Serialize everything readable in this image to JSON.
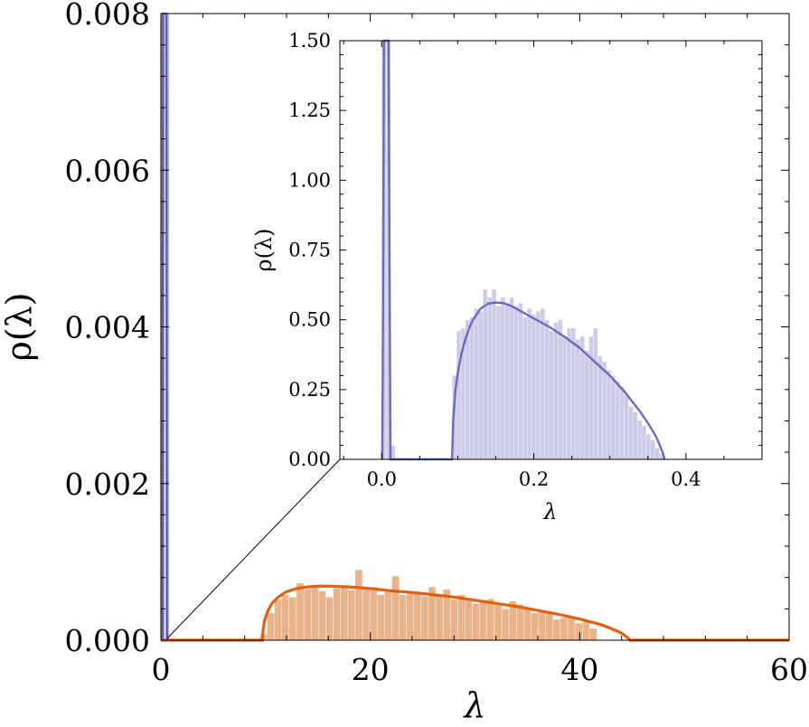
{
  "chart_data": [
    {
      "type": "bar",
      "role": "main",
      "xlabel": "λ",
      "ylabel": "ρ(λ)",
      "xlim": [
        0,
        60
      ],
      "ylim": [
        0,
        0.008
      ],
      "x_ticks": [
        "0",
        "20",
        "40",
        "60"
      ],
      "y_ticks": [
        "0.000",
        "0.002",
        "0.004",
        "0.006",
        "0.008"
      ],
      "grid": false,
      "series": [
        {
          "type": "bar",
          "color": "#e9b38a",
          "bin_width": 0.7,
          "bins": [
            [
              9.8,
              8e-05
            ],
            [
              10.5,
              0.00035
            ],
            [
              11.2,
              0.00052
            ],
            [
              11.9,
              0.00058
            ],
            [
              12.6,
              0.00055
            ],
            [
              13.3,
              0.00073
            ],
            [
              14.0,
              0.00065
            ],
            [
              14.7,
              0.00069
            ],
            [
              15.4,
              0.00063
            ],
            [
              16.1,
              0.00055
            ],
            [
              16.8,
              0.00066
            ],
            [
              17.5,
              0.0007
            ],
            [
              18.2,
              0.00064
            ],
            [
              18.9,
              0.0009
            ],
            [
              19.6,
              0.00065
            ],
            [
              20.3,
              0.00068
            ],
            [
              21.0,
              0.00058
            ],
            [
              21.7,
              0.00062
            ],
            [
              22.4,
              0.00082
            ],
            [
              23.1,
              0.00058
            ],
            [
              23.8,
              0.0006
            ],
            [
              24.5,
              0.00062
            ],
            [
              25.2,
              0.00056
            ],
            [
              25.9,
              0.00068
            ],
            [
              26.6,
              0.00056
            ],
            [
              27.3,
              0.00065
            ],
            [
              28.0,
              0.00052
            ],
            [
              28.7,
              0.00058
            ],
            [
              29.4,
              0.00053
            ],
            [
              30.1,
              0.00047
            ],
            [
              30.8,
              0.0005
            ],
            [
              31.5,
              0.00053
            ],
            [
              32.2,
              0.00045
            ],
            [
              32.9,
              0.0004
            ],
            [
              33.6,
              0.0005
            ],
            [
              34.3,
              0.00046
            ],
            [
              35.0,
              0.0004
            ],
            [
              35.7,
              0.00035
            ],
            [
              36.4,
              0.00036
            ],
            [
              37.1,
              0.00036
            ],
            [
              37.8,
              0.00027
            ],
            [
              38.5,
              0.00029
            ],
            [
              39.2,
              0.0003
            ],
            [
              39.9,
              0.00022
            ],
            [
              40.6,
              0.00024
            ],
            [
              41.3,
              0.00015
            ]
          ]
        },
        {
          "type": "bar",
          "color": "#8f8fd0",
          "bin_width": 0.35,
          "bins": [
            [
              0.2,
              0.008
            ],
            [
              0.6,
              0.008
            ]
          ]
        },
        {
          "type": "line",
          "color": "#e06010",
          "points": [
            [
              0,
              0
            ],
            [
              9.7,
              0
            ],
            [
              9.75,
              0.00012
            ],
            [
              9.9,
              0.00025
            ],
            [
              10.2,
              0.00037
            ],
            [
              10.6,
              0.00047
            ],
            [
              11.2,
              0.00055
            ],
            [
              12,
              0.00062
            ],
            [
              13,
              0.00066
            ],
            [
              14,
              0.00068
            ],
            [
              15,
              0.00069
            ],
            [
              16,
              0.00069
            ],
            [
              18,
              0.00068
            ],
            [
              20,
              0.00066
            ],
            [
              22,
              0.00063
            ],
            [
              24,
              0.00061
            ],
            [
              26,
              0.00058
            ],
            [
              28,
              0.00055
            ],
            [
              30,
              0.00051
            ],
            [
              32,
              0.00047
            ],
            [
              34,
              0.00043
            ],
            [
              36,
              0.00038
            ],
            [
              38,
              0.00033
            ],
            [
              40,
              0.00027
            ],
            [
              42,
              0.0002
            ],
            [
              43,
              0.00015
            ],
            [
              44,
              9e-05
            ],
            [
              44.6,
              3e-05
            ],
            [
              44.8,
              0
            ],
            [
              60,
              0
            ]
          ]
        },
        {
          "type": "line",
          "color": "#5e5eb4",
          "points": [
            [
              0.15,
              0
            ],
            [
              0.2,
              0.008
            ],
            [
              0.5,
              0.008
            ],
            [
              0.6,
              0
            ]
          ]
        }
      ]
    },
    {
      "type": "bar",
      "role": "inset",
      "xlabel": "λ",
      "ylabel": "ρ(λ)",
      "xlim": [
        -0.055,
        0.5
      ],
      "ylim": [
        0,
        1.5
      ],
      "x_ticks": [
        [
          "0.0",
          0
        ],
        [
          "0.2",
          0.2
        ],
        [
          "0.4",
          0.4
        ]
      ],
      "y_ticks": [
        [
          "0.00",
          0
        ],
        [
          "0.25",
          0.25
        ],
        [
          "0.50",
          0.5
        ],
        [
          "0.75",
          0.75
        ],
        [
          "1.00",
          1
        ],
        [
          "1.25",
          1.25
        ],
        [
          "1.50",
          1.5
        ]
      ],
      "grid": false,
      "series": [
        {
          "type": "bar",
          "color": "#cccce6",
          "bin_width": 0.0058,
          "bins": [
            [
              0.003,
              1.5
            ],
            [
              0.009,
              1.5
            ],
            [
              0.015,
              0.05
            ],
            [
              0.0955,
              0.3
            ],
            [
              0.1013,
              0.46
            ],
            [
              0.1071,
              0.47
            ],
            [
              0.1129,
              0.5
            ],
            [
              0.1187,
              0.51
            ],
            [
              0.1245,
              0.54
            ],
            [
              0.1303,
              0.53
            ],
            [
              0.1361,
              0.61
            ],
            [
              0.1419,
              0.58
            ],
            [
              0.1477,
              0.61
            ],
            [
              0.1535,
              0.55
            ],
            [
              0.1593,
              0.58
            ],
            [
              0.1651,
              0.56
            ],
            [
              0.1709,
              0.58
            ],
            [
              0.1767,
              0.55
            ],
            [
              0.1825,
              0.56
            ],
            [
              0.1883,
              0.51
            ],
            [
              0.1941,
              0.54
            ],
            [
              0.1999,
              0.52
            ],
            [
              0.2057,
              0.53
            ],
            [
              0.2115,
              0.54
            ],
            [
              0.2173,
              0.5
            ],
            [
              0.2231,
              0.46
            ],
            [
              0.2289,
              0.49
            ],
            [
              0.2347,
              0.5
            ],
            [
              0.2405,
              0.44
            ],
            [
              0.2463,
              0.47
            ],
            [
              0.2521,
              0.47
            ],
            [
              0.2579,
              0.43
            ],
            [
              0.2637,
              0.44
            ],
            [
              0.2695,
              0.39
            ],
            [
              0.2753,
              0.44
            ],
            [
              0.2811,
              0.47
            ],
            [
              0.2869,
              0.37
            ],
            [
              0.2927,
              0.35
            ],
            [
              0.2985,
              0.32
            ],
            [
              0.3043,
              0.3
            ],
            [
              0.3101,
              0.28
            ],
            [
              0.3159,
              0.26
            ],
            [
              0.3217,
              0.23
            ],
            [
              0.3275,
              0.19
            ],
            [
              0.3333,
              0.17
            ],
            [
              0.3391,
              0.14
            ],
            [
              0.3449,
              0.12
            ],
            [
              0.3507,
              0.09
            ],
            [
              0.3565,
              0.07
            ],
            [
              0.3623,
              0.04
            ],
            [
              0.3681,
              0.02
            ]
          ]
        },
        {
          "type": "line",
          "color": "#6a6ab8",
          "points": [
            [
              0.0007,
              0
            ],
            [
              0.0017,
              0.5
            ],
            [
              0.003,
              1.5
            ],
            [
              0.009,
              1.5
            ],
            [
              0.0105,
              0.6
            ],
            [
              0.0115,
              0
            ],
            [
              0.0925,
              0
            ],
            [
              0.094,
              0.14
            ],
            [
              0.097,
              0.25
            ],
            [
              0.1,
              0.31
            ],
            [
              0.105,
              0.38
            ],
            [
              0.11,
              0.43
            ],
            [
              0.115,
              0.47
            ],
            [
              0.12,
              0.5
            ],
            [
              0.125,
              0.52
            ],
            [
              0.13,
              0.54
            ],
            [
              0.14,
              0.558
            ],
            [
              0.15,
              0.562
            ],
            [
              0.16,
              0.56
            ],
            [
              0.17,
              0.55
            ],
            [
              0.18,
              0.535
            ],
            [
              0.19,
              0.52
            ],
            [
              0.2,
              0.505
            ],
            [
              0.22,
              0.475
            ],
            [
              0.24,
              0.44
            ],
            [
              0.26,
              0.4
            ],
            [
              0.28,
              0.35
            ],
            [
              0.3,
              0.3
            ],
            [
              0.32,
              0.24
            ],
            [
              0.34,
              0.17
            ],
            [
              0.35,
              0.13
            ],
            [
              0.36,
              0.085
            ],
            [
              0.365,
              0.055
            ],
            [
              0.37,
              0.02
            ],
            [
              0.372,
              0
            ]
          ]
        }
      ]
    }
  ]
}
